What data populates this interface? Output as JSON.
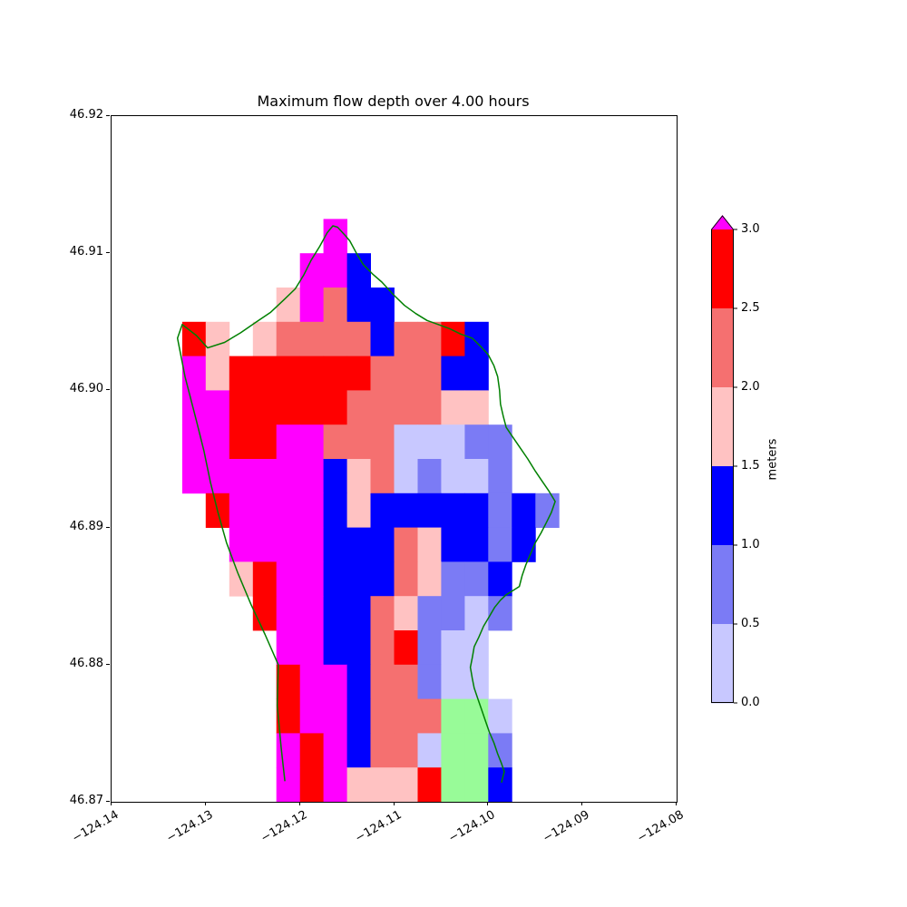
{
  "chart_data": {
    "type": "heatmap",
    "title": "Maximum flow depth over 4.00 hours",
    "xlabel": "",
    "ylabel": "",
    "xlim": [
      -124.14,
      -124.08
    ],
    "ylim": [
      46.87,
      46.92
    ],
    "grid_on": false,
    "xticks": [
      {
        "label": "−124.14",
        "value": -124.14
      },
      {
        "label": "−124.13",
        "value": -124.13
      },
      {
        "label": "−124.12",
        "value": -124.12
      },
      {
        "label": "−124.11",
        "value": -124.11
      },
      {
        "label": "−124.10",
        "value": -124.1
      },
      {
        "label": "−124.09",
        "value": -124.09
      },
      {
        "label": "−124.08",
        "value": -124.08
      }
    ],
    "yticks": [
      {
        "label": "46.92",
        "value": 46.92
      },
      {
        "label": "46.91",
        "value": 46.91
      },
      {
        "label": "46.90",
        "value": 46.9
      },
      {
        "label": "46.89",
        "value": 46.89
      },
      {
        "label": "46.88",
        "value": 46.88
      },
      {
        "label": "46.87",
        "value": 46.87
      }
    ],
    "palette": {
      "M": {
        "color": "#ff00ff",
        "range_m": "above 3.0"
      },
      "R": {
        "color": "#ff0000",
        "range_m": "2.5-3.0"
      },
      "S": {
        "color": "#f57070",
        "range_m": "2.0-2.5"
      },
      "P": {
        "color": "#ffc2c2",
        "range_m": "1.5-2.0"
      },
      "B": {
        "color": "#0000ff",
        "range_m": "1.0-1.5"
      },
      "V": {
        "color": "#7b7bf5",
        "range_m": "0.5-1.0"
      },
      "L": {
        "color": "#c8c8ff",
        "range_m": "0.0-0.5"
      },
      "G": {
        "color": "#98fb98",
        "range_m": "other"
      }
    },
    "grid": {
      "lon_start": -124.1325,
      "lat_start": 46.9125,
      "cell_deg": 0.0025,
      "ncols": 16,
      "nrows": 17,
      "rows": [
        "......M.........",
        ".....MMB........",
        "....PMSBB.......",
        "RP.PSSSSBSSRB...",
        "MPRRRRRRSSSBB...",
        "MMRRRRRSSSSPP...",
        "MMRRMMSSSLLLVV..",
        "MMMMMMBPSLVLLV..",
        ".RMMMMBPBBBBBVBV",
        "..MMMMBBBSPBBVB.",
        "..PRMMBBBSPVVB..",
        "...RMMBBSPVVLV..",
        "....MMBBSRVLL...",
        "....RMMBSSVLL...",
        "....RMMBSSSGGL..",
        "....MRMBSSLGGV..",
        "....MRMPPPRGGB.."
      ]
    },
    "coastline_color": "#008000",
    "coastline": [
      [
        -124.1216,
        46.8715
      ],
      [
        -124.122,
        46.874
      ],
      [
        -124.1224,
        46.877
      ],
      [
        -124.1223,
        46.88
      ],
      [
        -124.1237,
        46.8822
      ],
      [
        -124.1252,
        46.8844
      ],
      [
        -124.1266,
        46.8867
      ],
      [
        -124.1278,
        46.8889
      ],
      [
        -124.1287,
        46.8911
      ],
      [
        -124.1295,
        46.8933
      ],
      [
        -124.1302,
        46.8956
      ],
      [
        -124.131,
        46.8978
      ],
      [
        -124.1322,
        46.901
      ],
      [
        -124.133,
        46.9038
      ],
      [
        -124.1325,
        46.9048
      ],
      [
        -124.131,
        46.904
      ],
      [
        -124.1298,
        46.9031
      ],
      [
        -124.128,
        46.9035
      ],
      [
        -124.1263,
        46.9042
      ],
      [
        -124.1246,
        46.905
      ],
      [
        -124.1231,
        46.9057
      ],
      [
        -124.1217,
        46.9066
      ],
      [
        -124.1205,
        46.9074
      ],
      [
        -124.1196,
        46.9084
      ],
      [
        -124.1188,
        46.9095
      ],
      [
        -124.1179,
        46.9105
      ],
      [
        -124.1171,
        46.9115
      ],
      [
        -124.1165,
        46.912
      ],
      [
        -124.116,
        46.9119
      ],
      [
        -124.1152,
        46.9113
      ],
      [
        -124.1147,
        46.9109
      ],
      [
        -124.114,
        46.91
      ],
      [
        -124.1133,
        46.9092
      ],
      [
        -124.1123,
        46.9085
      ],
      [
        -124.1113,
        46.9079
      ],
      [
        -124.1101,
        46.907
      ],
      [
        -124.1089,
        46.9062
      ],
      [
        -124.1077,
        46.9056
      ],
      [
        -124.1065,
        46.9051
      ],
      [
        -124.1053,
        46.9048
      ],
      [
        -124.1041,
        46.9045
      ],
      [
        -124.1029,
        46.9041
      ],
      [
        -124.1017,
        46.9038
      ],
      [
        -124.1008,
        46.9032
      ],
      [
        -124.1,
        46.9026
      ],
      [
        -124.0994,
        46.9018
      ],
      [
        -124.099,
        46.901
      ],
      [
        -124.0988,
        46.9
      ],
      [
        -124.0987,
        46.899
      ],
      [
        -124.0984,
        46.8981
      ],
      [
        -124.0981,
        46.8973
      ],
      [
        -124.0974,
        46.8966
      ],
      [
        -124.0967,
        46.8959
      ],
      [
        -124.0958,
        46.895
      ],
      [
        -124.095,
        46.8941
      ],
      [
        -124.0943,
        46.8934
      ],
      [
        -124.0936,
        46.8927
      ],
      [
        -124.0929,
        46.8919
      ],
      [
        -124.0933,
        46.8911
      ],
      [
        -124.0938,
        46.8904
      ],
      [
        -124.0944,
        46.8896
      ],
      [
        -124.095,
        46.8889
      ],
      [
        -124.0955,
        46.8881
      ],
      [
        -124.096,
        46.8873
      ],
      [
        -124.0964,
        46.8865
      ],
      [
        -124.0967,
        46.8857
      ],
      [
        -124.0974,
        46.8854
      ],
      [
        -124.0981,
        46.8851
      ],
      [
        -124.0987,
        46.8847
      ],
      [
        -124.0993,
        46.8842
      ],
      [
        -124.0999,
        46.8835
      ],
      [
        -124.1005,
        46.8828
      ],
      [
        -124.101,
        46.882
      ],
      [
        -124.1015,
        46.8813
      ],
      [
        -124.1017,
        46.8805
      ],
      [
        -124.1019,
        46.8798
      ],
      [
        -124.1017,
        46.879
      ],
      [
        -124.1015,
        46.8783
      ],
      [
        -124.1011,
        46.8775
      ],
      [
        -124.1007,
        46.8767
      ],
      [
        -124.1003,
        46.8759
      ],
      [
        -124.0999,
        46.8751
      ],
      [
        -124.0994,
        46.8743
      ],
      [
        -124.099,
        46.8735
      ],
      [
        -124.0986,
        46.8728
      ],
      [
        -124.0983,
        46.8722
      ],
      [
        -124.0986,
        46.8714
      ]
    ],
    "colorbar": {
      "label": "meters",
      "orientation": "vertical",
      "position": "right",
      "extend": "max",
      "over_color": "#ff00ff",
      "boundaries": [
        0.0,
        0.5,
        1.0,
        1.5,
        2.0,
        2.5,
        3.0
      ],
      "segment_colors_bottom_to_top": [
        "#c8c8ff",
        "#7b7bf5",
        "#0000ff",
        "#ffc2c2",
        "#f57070",
        "#ff0000"
      ],
      "ticks": [
        {
          "label": "0.0",
          "value": 0.0
        },
        {
          "label": "0.5",
          "value": 0.5
        },
        {
          "label": "1.0",
          "value": 1.0
        },
        {
          "label": "1.5",
          "value": 1.5
        },
        {
          "label": "2.0",
          "value": 2.0
        },
        {
          "label": "2.5",
          "value": 2.5
        },
        {
          "label": "3.0",
          "value": 3.0
        }
      ]
    }
  }
}
